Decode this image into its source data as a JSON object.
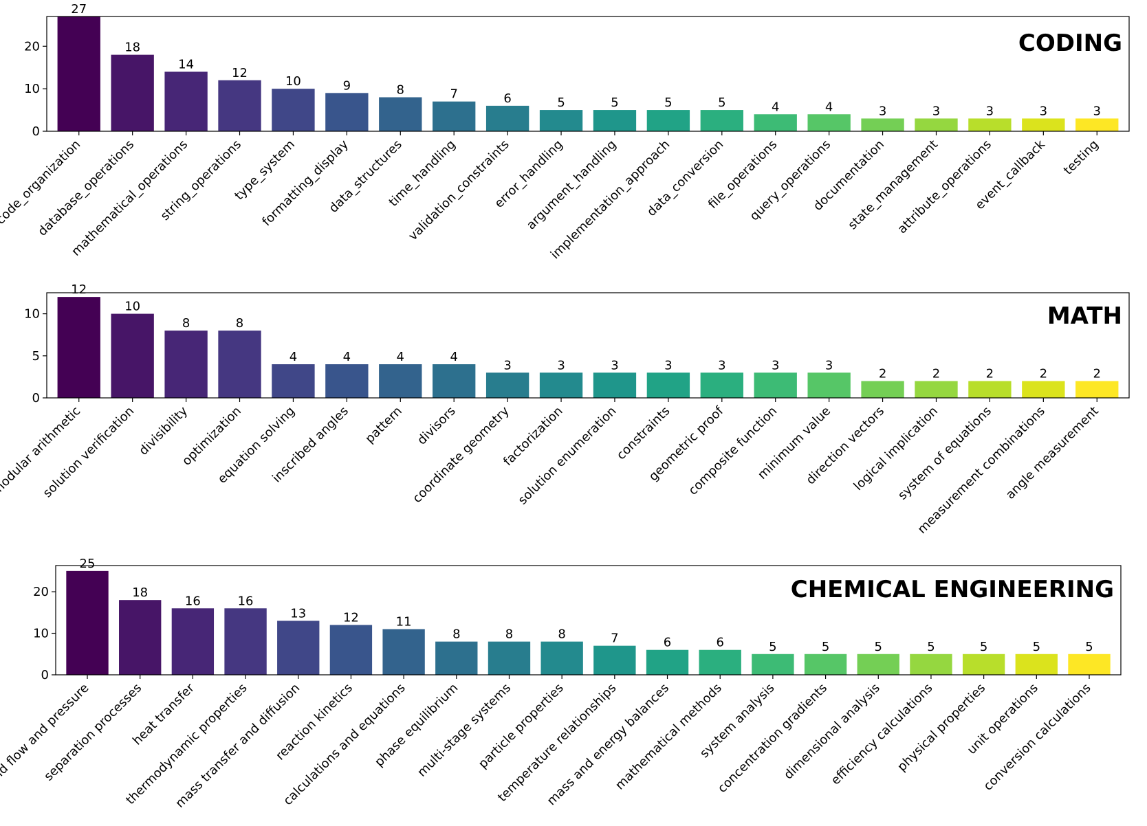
{
  "chart_data": [
    {
      "type": "bar",
      "title": "CODING",
      "xlabel": "",
      "ylabel": "",
      "ylim": [
        0,
        27
      ],
      "yticks": [
        0,
        10,
        20
      ],
      "grid": false,
      "categories": [
        "code_organization",
        "database_operations",
        "mathematical_operations",
        "string_operations",
        "type_system",
        "formatting_display",
        "data_structures",
        "time_handling",
        "validation_constraints",
        "error_handling",
        "argument_handling",
        "implementation_approach",
        "data_conversion",
        "file_operations",
        "query_operations",
        "documentation",
        "state_management",
        "attribute_operations",
        "event_callback",
        "testing"
      ],
      "values": [
        27,
        18,
        14,
        12,
        10,
        9,
        8,
        7,
        6,
        5,
        5,
        5,
        5,
        4,
        4,
        3,
        3,
        3,
        3,
        3
      ]
    },
    {
      "type": "bar",
      "title": "MATH",
      "xlabel": "",
      "ylabel": "",
      "ylim": [
        0,
        12.5
      ],
      "yticks": [
        0,
        5,
        10
      ],
      "grid": false,
      "categories": [
        "modular arithmetic",
        "solution verification",
        "divisibility",
        "optimization",
        "equation solving",
        "inscribed angles",
        "pattern",
        "divisors",
        "coordinate geometry",
        "factorization",
        "solution enumeration",
        "constraints",
        "geometric proof",
        "composite function",
        "minimum value",
        "direction vectors",
        "logical implication",
        "system of equations",
        "measurement combinations",
        "angle measurement"
      ],
      "values": [
        12,
        10,
        8,
        8,
        4,
        4,
        4,
        4,
        3,
        3,
        3,
        3,
        3,
        3,
        3,
        2,
        2,
        2,
        2,
        2
      ]
    },
    {
      "type": "bar",
      "title": "CHEMICAL ENGINEERING",
      "xlabel": "",
      "ylabel": "",
      "ylim": [
        0,
        26.3
      ],
      "yticks": [
        0,
        10,
        20
      ],
      "grid": false,
      "categories": [
        "fluid flow and pressure",
        "separation processes",
        "heat transfer",
        "thermodynamic properties",
        "mass transfer and diffusion",
        "reaction kinetics",
        "calculations and equations",
        "phase equilibrium",
        "multi-stage systems",
        "particle properties",
        "temperature relationships",
        "mass and energy balances",
        "mathematical methods",
        "system analysis",
        "concentration gradients",
        "dimensional analysis",
        "efficiency calculations",
        "physical properties",
        "unit operations",
        "conversion calculations"
      ],
      "values": [
        25,
        18,
        16,
        16,
        13,
        12,
        11,
        8,
        8,
        8,
        7,
        6,
        6,
        5,
        5,
        5,
        5,
        5,
        5,
        5
      ]
    }
  ],
  "palette": [
    "#440154",
    "#481a6c",
    "#472f7d",
    "#414487",
    "#39568c",
    "#31688e",
    "#2a788e",
    "#23888e",
    "#1f988b",
    "#22a884",
    "#35b779",
    "#54c568",
    "#7ad151",
    "#a5db36",
    "#d2e21b",
    "#fde725"
  ]
}
